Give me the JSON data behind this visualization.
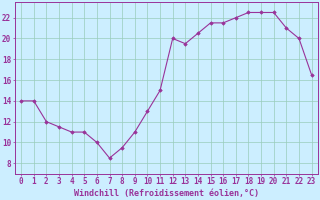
{
  "x": [
    0,
    1,
    2,
    3,
    4,
    5,
    6,
    7,
    8,
    9,
    10,
    11,
    12,
    13,
    14,
    15,
    16,
    17,
    18,
    19,
    20,
    21,
    22,
    23
  ],
  "y": [
    14.0,
    14.0,
    12.0,
    11.5,
    11.0,
    11.0,
    10.0,
    8.5,
    9.5,
    11.0,
    13.0,
    15.0,
    20.0,
    19.5,
    20.5,
    21.5,
    21.5,
    22.0,
    22.5,
    22.5,
    22.5,
    21.0,
    20.0,
    16.5
  ],
  "line_color": "#993399",
  "marker": "D",
  "marker_size": 1.8,
  "bg_color": "#cceeff",
  "grid_color": "#99ccbb",
  "xlabel": "Windchill (Refroidissement éolien,°C)",
  "xlabel_fontsize": 6.0,
  "tick_fontsize": 5.5,
  "ylim": [
    7,
    23.5
  ],
  "xlim": [
    -0.5,
    23.5
  ],
  "yticks": [
    8,
    10,
    12,
    14,
    16,
    18,
    20,
    22
  ],
  "xticks": [
    0,
    1,
    2,
    3,
    4,
    5,
    6,
    7,
    8,
    9,
    10,
    11,
    12,
    13,
    14,
    15,
    16,
    17,
    18,
    19,
    20,
    21,
    22,
    23
  ]
}
